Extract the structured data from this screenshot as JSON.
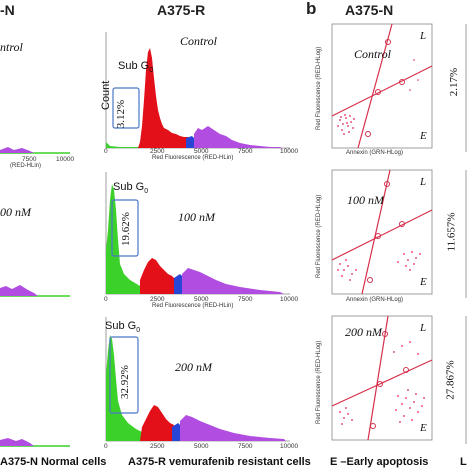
{
  "headers": {
    "left_partial": "-N",
    "middle": "A375-R",
    "panel_b_letter": "b",
    "panel_b_title": "A375-N"
  },
  "histograms": {
    "count_label": "Count",
    "x_axis_label": "Red Fluorescence (RED-HLin)",
    "ticks": [
      "0",
      "2500",
      "5000",
      "7500",
      "10000"
    ],
    "left_ticks_partial": [
      "7500",
      "10000"
    ],
    "left_axis_partial": "(RED-HLin)",
    "rows": [
      {
        "condition": "Control",
        "left_condition_partial": "ntrol",
        "subg_label": "Sub G",
        "subg_sub": "0",
        "subg_pct": "3.12%"
      },
      {
        "condition": "100 nM",
        "left_condition_partial": "00 nM",
        "subg_label": "Sub G",
        "subg_sub": "0",
        "subg_pct": "19.62%"
      },
      {
        "condition": "200 nM",
        "left_condition_partial": "",
        "subg_label": "Sub G",
        "subg_sub": "0",
        "subg_pct": "32.92%"
      }
    ]
  },
  "scatter": {
    "y_axis_label": "Red Fluorescence (RED-HLog)",
    "x_axis_label": "Annexin (GRN-HLog)",
    "quad_L": "L",
    "quad_E": "E",
    "rows": [
      {
        "condition": "Control",
        "right_pct": "2.17%"
      },
      {
        "condition": "100 nM",
        "right_pct": "11.657%"
      },
      {
        "condition": "200 nM",
        "right_pct": "27.867%"
      }
    ]
  },
  "footer": {
    "a375n": "A375-N  Normal cells",
    "a375r": "A375-R  vemurafenib resistant cells",
    "early": "E –Early apoptosis",
    "trail": "L"
  },
  "colors": {
    "green": "#3cd12a",
    "red": "#e3101a",
    "blue": "#2746d6",
    "purple": "#b14de0",
    "scatter_line": "#d6304a",
    "scatter_dot": "#e0245a",
    "gate_box": "#4a78c8"
  }
}
